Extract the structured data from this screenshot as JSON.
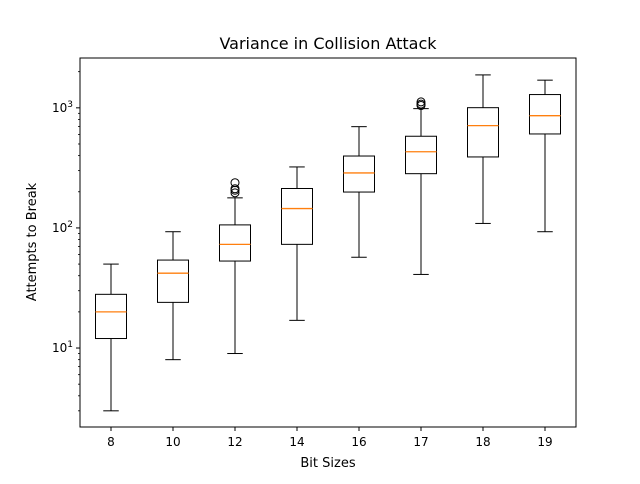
{
  "chart_data": {
    "type": "box",
    "title": "Variance in Collision Attack",
    "xlabel": "Bit Sizes",
    "ylabel": "Attempts to Break",
    "yscale": "log",
    "ylim": [
      2.2,
      2600
    ],
    "y_ticks": [
      {
        "value": 10,
        "base": "10",
        "exp": "1"
      },
      {
        "value": 100,
        "base": "10",
        "exp": "2"
      },
      {
        "value": 1000,
        "base": "10",
        "exp": "3"
      }
    ],
    "categories": [
      "8",
      "10",
      "12",
      "14",
      "16",
      "17",
      "18",
      "19"
    ],
    "boxes": [
      {
        "label": "8",
        "whislo": 3,
        "q1": 12,
        "med": 20,
        "q3": 28,
        "whishi": 50,
        "fliers": []
      },
      {
        "label": "10",
        "whislo": 8,
        "q1": 24,
        "med": 42,
        "q3": 54,
        "whishi": 93,
        "fliers": []
      },
      {
        "label": "12",
        "whislo": 9,
        "q1": 53,
        "med": 73,
        "q3": 106,
        "whishi": 178,
        "fliers": [
          196,
          206,
          212,
          238
        ]
      },
      {
        "label": "14",
        "whislo": 17,
        "q1": 73,
        "med": 145,
        "q3": 213,
        "whishi": 322,
        "fliers": []
      },
      {
        "label": "16",
        "whislo": 57,
        "q1": 199,
        "med": 287,
        "q3": 397,
        "whishi": 697,
        "fliers": []
      },
      {
        "label": "17",
        "whislo": 41,
        "q1": 283,
        "med": 431,
        "q3": 580,
        "whishi": 985,
        "fliers": [
          1045,
          1075,
          1120
        ]
      },
      {
        "label": "18",
        "whislo": 109,
        "q1": 390,
        "med": 711,
        "q3": 1003,
        "whishi": 1880,
        "fliers": []
      },
      {
        "label": "19",
        "whislo": 93,
        "q1": 606,
        "med": 860,
        "q3": 1290,
        "whishi": 1700,
        "fliers": []
      }
    ],
    "colors": {
      "box": "#000000",
      "median": "#ff7f0e",
      "flier": "#000000"
    },
    "grid": false,
    "legend": "none"
  }
}
